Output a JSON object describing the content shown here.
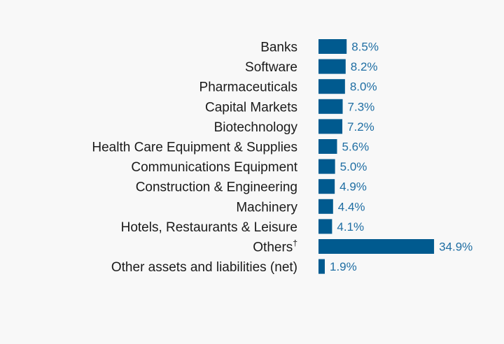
{
  "colors": {
    "bar": "#005a8f",
    "value_text": "#1f6ea3",
    "label_text": "#1a1a1a",
    "background": "#f8f8f8"
  },
  "chart_data": {
    "type": "bar",
    "orientation": "horizontal",
    "title": "",
    "xlabel": "",
    "ylabel": "",
    "grid": false,
    "legend": "none",
    "xlim": [
      0,
      35
    ],
    "categories": [
      "Banks",
      "Software",
      "Pharmaceuticals",
      "Capital Markets",
      "Biotechnology",
      "Health Care Equipment & Supplies",
      "Communications Equipment",
      "Construction & Engineering",
      "Machinery",
      "Hotels, Restaurants & Leisure",
      "Others",
      "Other assets and liabilities (net)"
    ],
    "category_superscripts": [
      "",
      "",
      "",
      "",
      "",
      "",
      "",
      "",
      "",
      "",
      "†",
      ""
    ],
    "values": [
      8.5,
      8.2,
      8.0,
      7.3,
      7.2,
      5.6,
      5.0,
      4.9,
      4.4,
      4.1,
      34.9,
      1.9
    ],
    "value_labels": [
      "8.5%",
      "8.2%",
      "8.0%",
      "7.3%",
      "7.2%",
      "5.6%",
      "5.0%",
      "4.9%",
      "4.4%",
      "4.1%",
      "34.9%",
      "1.9%"
    ]
  }
}
